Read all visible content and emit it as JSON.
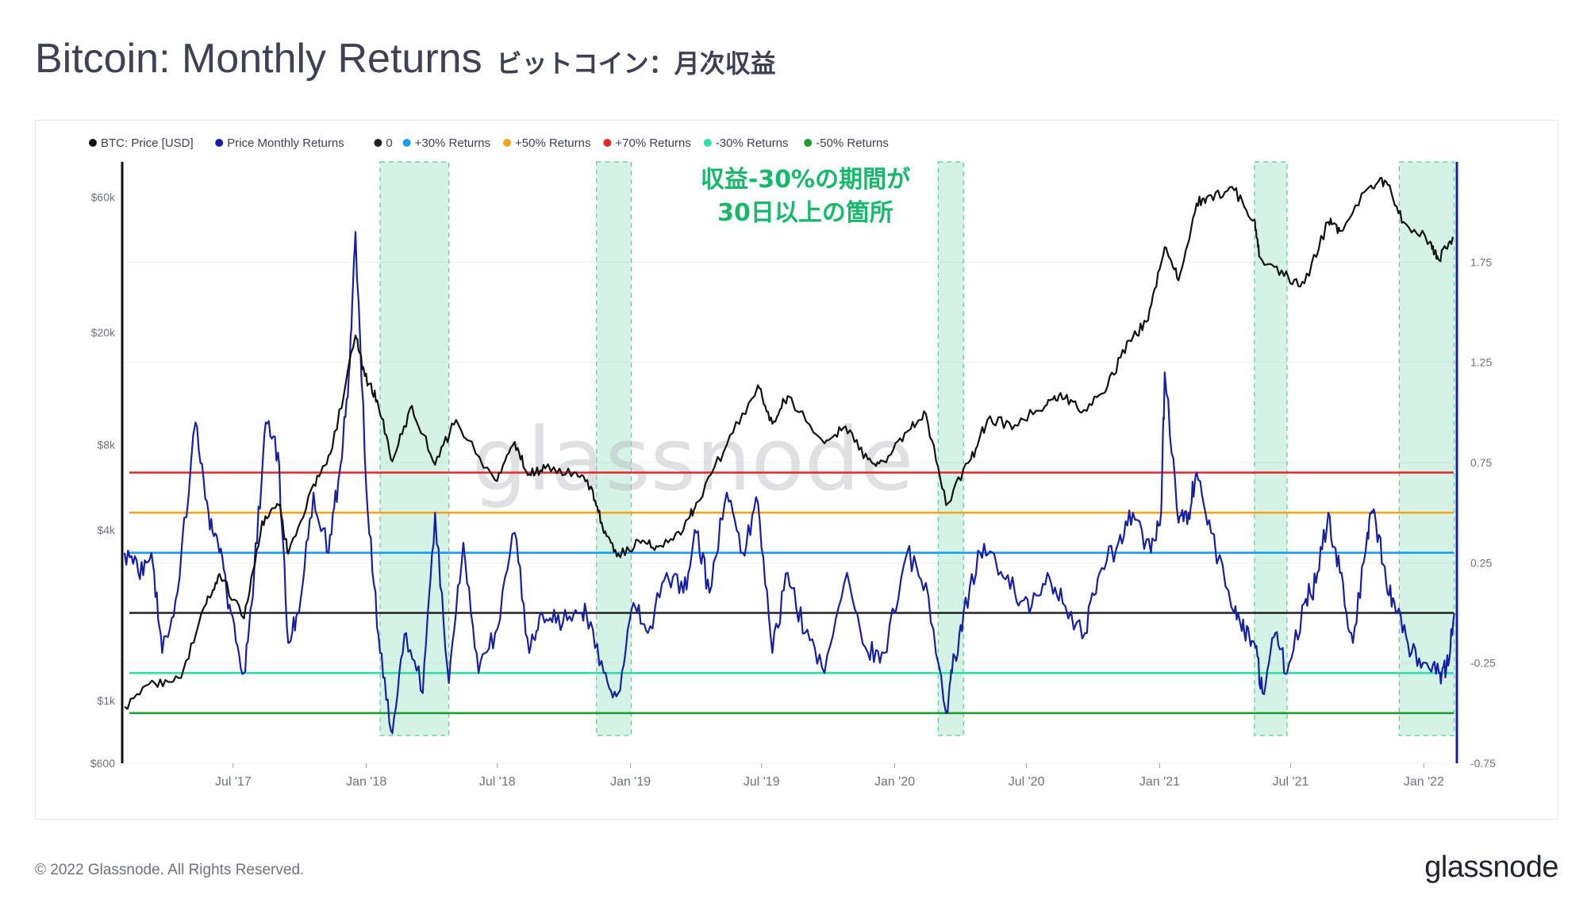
{
  "title": "Bitcoin: Monthly Returns",
  "title_jp": "ビットコイン：月次収益",
  "annotation": [
    "収益-30%の期間が",
    "30日以上の箇所"
  ],
  "watermark": "glassnode",
  "footer": {
    "copyright": "© 2022 Glassnode. All Rights Reserved.",
    "logo": "glassnode"
  },
  "colors": {
    "price": "#111111",
    "returns": "#1520a6",
    "zero": "#222222",
    "p30": "#1a9ef0",
    "p50": "#f5a51c",
    "p70": "#e8262b",
    "m30": "#2ee0aa",
    "m50": "#1e9e2e",
    "shade": "#2ec47f"
  },
  "chart_data": {
    "type": "line",
    "legend": [
      "BTC: Price [USD]",
      "Price Monthly Returns",
      "0",
      "+30% Returns",
      "+50% Returns",
      "+70% Returns",
      "-30% Returns",
      "-50% Returns"
    ],
    "legend_placement": "top-left",
    "x_ticks": [
      "Jul '17",
      "Jan '18",
      "Jul '18",
      "Jan '19",
      "Jul '19",
      "Jan '20",
      "Jul '20",
      "Jan '21",
      "Jul '21",
      "Jan '22"
    ],
    "x_range": [
      "2017-02-01",
      "2022-02-20"
    ],
    "y_left": {
      "scale": "log",
      "ticks": [
        "$600",
        "$1k",
        "$4k",
        "$8k",
        "$20k",
        "$60k"
      ],
      "tick_values": [
        600,
        1000,
        4000,
        8000,
        20000,
        60000
      ],
      "range": [
        600,
        80000
      ]
    },
    "y_right": {
      "scale": "linear",
      "ticks": [
        "-0.75",
        "-0.25",
        "0.25",
        "0.75",
        "1.25",
        "1.75"
      ],
      "tick_values": [
        -0.75,
        -0.25,
        0.25,
        0.75,
        1.25,
        1.75
      ],
      "range": [
        -0.75,
        2.25
      ]
    },
    "reference_lines": [
      {
        "name": "0",
        "value": 0
      },
      {
        "name": "+30% Returns",
        "value": 0.3
      },
      {
        "name": "+50% Returns",
        "value": 0.5
      },
      {
        "name": "+70% Returns",
        "value": 0.7
      },
      {
        "name": "-30% Returns",
        "value": -0.3
      },
      {
        "name": "-50% Returns",
        "value": -0.5
      }
    ],
    "shaded_periods": [
      [
        "2018-01-20",
        "2018-04-25"
      ],
      [
        "2018-11-15",
        "2019-01-02"
      ],
      [
        "2020-03-01",
        "2020-04-05"
      ],
      [
        "2021-05-12",
        "2021-06-26"
      ],
      [
        "2021-11-28",
        "2022-02-12"
      ]
    ],
    "series": [
      {
        "name": "BTC: Price [USD]",
        "axis": "left",
        "x": [
          "2017-02-01",
          "2017-03-15",
          "2017-04-20",
          "2017-05-25",
          "2017-06-12",
          "2017-07-16",
          "2017-08-10",
          "2017-09-02",
          "2017-09-15",
          "2017-10-20",
          "2017-11-15",
          "2017-12-17",
          "2017-12-30",
          "2018-01-16",
          "2018-02-06",
          "2018-03-05",
          "2018-04-06",
          "2018-05-05",
          "2018-06-28",
          "2018-07-25",
          "2018-08-14",
          "2018-09-05",
          "2018-10-15",
          "2018-11-10",
          "2018-11-25",
          "2018-12-15",
          "2019-01-15",
          "2019-02-08",
          "2019-03-15",
          "2019-04-02",
          "2019-05-14",
          "2019-06-26",
          "2019-07-16",
          "2019-08-06",
          "2019-09-26",
          "2019-10-25",
          "2019-11-25",
          "2019-12-17",
          "2020-01-18",
          "2020-02-13",
          "2020-03-12",
          "2020-04-15",
          "2020-05-08",
          "2020-06-15",
          "2020-07-27",
          "2020-08-17",
          "2020-09-15",
          "2020-10-21",
          "2020-11-20",
          "2020-12-16",
          "2021-01-08",
          "2021-01-27",
          "2021-02-21",
          "2021-03-13",
          "2021-04-14",
          "2021-05-12",
          "2021-05-19",
          "2021-06-22",
          "2021-07-20",
          "2021-08-22",
          "2021-09-07",
          "2021-10-20",
          "2021-11-10",
          "2021-12-04",
          "2022-01-10",
          "2022-01-22",
          "2022-02-10"
        ],
        "y": [
          950,
          1150,
          1200,
          2200,
          2800,
          1950,
          4300,
          4900,
          3300,
          5800,
          7800,
          19500,
          14000,
          11500,
          7000,
          11000,
          6800,
          9800,
          6000,
          8200,
          6300,
          6600,
          6400,
          5500,
          3900,
          3300,
          3600,
          3500,
          4000,
          5000,
          8000,
          13000,
          9500,
          11900,
          8100,
          9300,
          7100,
          7000,
          8900,
          10300,
          4900,
          7100,
          9800,
          9400,
          11000,
          12200,
          10400,
          12900,
          18700,
          22000,
          40000,
          30500,
          57000,
          61000,
          63500,
          50000,
          37000,
          31600,
          29800,
          49000,
          45500,
          66000,
          68000,
          49000,
          41800,
          36000,
          43500
        ]
      },
      {
        "name": "Price Monthly Returns",
        "axis": "right",
        "x": [
          "2017-02-01",
          "2017-02-20",
          "2017-03-10",
          "2017-03-25",
          "2017-04-15",
          "2017-05-10",
          "2017-05-28",
          "2017-06-12",
          "2017-06-28",
          "2017-07-16",
          "2017-07-30",
          "2017-08-15",
          "2017-09-01",
          "2017-09-15",
          "2017-09-30",
          "2017-10-20",
          "2017-11-10",
          "2017-11-25",
          "2017-12-08",
          "2017-12-17",
          "2018-01-03",
          "2018-01-20",
          "2018-02-06",
          "2018-02-25",
          "2018-03-20",
          "2018-04-06",
          "2018-04-25",
          "2018-05-15",
          "2018-06-05",
          "2018-06-28",
          "2018-07-25",
          "2018-08-14",
          "2018-08-30",
          "2018-09-20",
          "2018-10-15",
          "2018-11-01",
          "2018-11-25",
          "2018-12-15",
          "2019-01-05",
          "2019-01-25",
          "2019-02-20",
          "2019-03-15",
          "2019-04-02",
          "2019-04-20",
          "2019-05-14",
          "2019-06-05",
          "2019-06-26",
          "2019-07-16",
          "2019-08-06",
          "2019-08-30",
          "2019-09-26",
          "2019-10-27",
          "2019-11-25",
          "2019-12-17",
          "2020-01-18",
          "2020-02-13",
          "2020-03-12",
          "2020-03-20",
          "2020-04-05",
          "2020-04-28",
          "2020-05-20",
          "2020-06-15",
          "2020-07-05",
          "2020-07-30",
          "2020-08-20",
          "2020-09-20",
          "2020-10-10",
          "2020-11-05",
          "2020-11-25",
          "2020-12-20",
          "2021-01-03",
          "2021-01-08",
          "2021-01-27",
          "2021-02-10",
          "2021-02-21",
          "2021-03-13",
          "2021-04-14",
          "2021-04-28",
          "2021-05-12",
          "2021-05-23",
          "2021-06-10",
          "2021-06-26",
          "2021-07-20",
          "2021-08-05",
          "2021-08-22",
          "2021-09-07",
          "2021-09-25",
          "2021-10-15",
          "2021-10-25",
          "2021-11-10",
          "2021-11-25",
          "2021-12-15",
          "2022-01-05",
          "2022-01-22",
          "2022-02-01",
          "2022-02-12"
        ],
        "y": [
          0.3,
          0.2,
          0.3,
          -0.2,
          0.1,
          0.95,
          0.5,
          0.3,
          0.0,
          -0.3,
          0.2,
          0.95,
          0.8,
          -0.15,
          0.0,
          0.6,
          0.3,
          0.7,
          1.2,
          1.9,
          0.5,
          -0.2,
          -0.6,
          -0.1,
          -0.4,
          0.5,
          -0.35,
          0.35,
          -0.3,
          -0.1,
          0.4,
          -0.2,
          0.0,
          -0.05,
          0.0,
          0.0,
          -0.3,
          -0.4,
          0.05,
          -0.1,
          0.2,
          0.1,
          0.4,
          0.1,
          0.6,
          0.3,
          0.55,
          -0.2,
          0.2,
          -0.1,
          -0.3,
          0.2,
          -0.2,
          -0.2,
          0.3,
          0.15,
          -0.5,
          -0.3,
          0.0,
          0.3,
          0.25,
          0.1,
          0.0,
          0.2,
          0.05,
          -0.1,
          0.2,
          0.35,
          0.5,
          0.3,
          0.5,
          1.2,
          0.45,
          0.5,
          0.7,
          0.4,
          0.0,
          -0.1,
          -0.15,
          -0.4,
          -0.1,
          -0.3,
          0.05,
          0.15,
          0.5,
          0.2,
          -0.15,
          0.4,
          0.5,
          0.15,
          0.0,
          -0.2,
          -0.25,
          -0.3,
          -0.28,
          0.0
        ]
      }
    ]
  }
}
